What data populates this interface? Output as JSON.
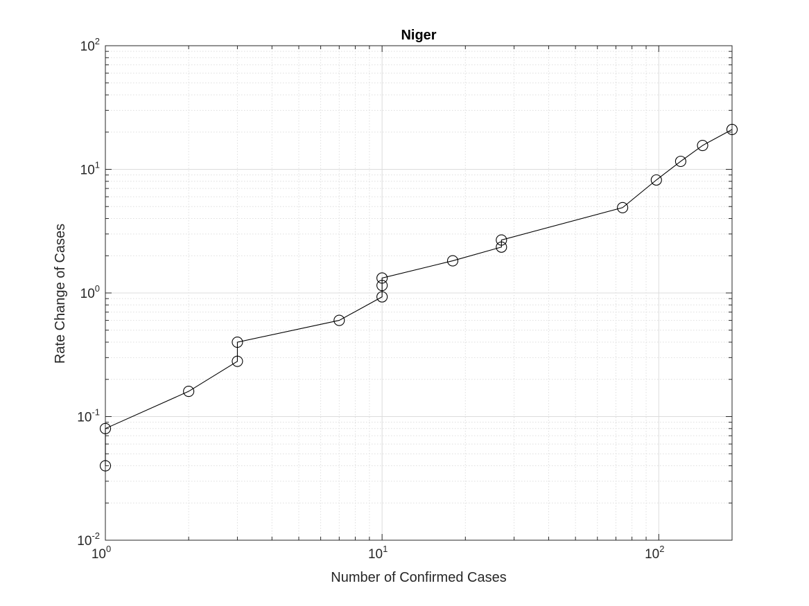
{
  "chart_data": {
    "type": "line",
    "title": "Niger",
    "xlabel": "Number of Confirmed Cases",
    "ylabel": "Rate Change of Cases",
    "xscale": "log",
    "yscale": "log",
    "xlim": [
      1,
      184
    ],
    "ylim": [
      0.01,
      100
    ],
    "xticks": [
      {
        "value": 1,
        "base": "10",
        "exp": "0"
      },
      {
        "value": 10,
        "base": "10",
        "exp": "1"
      },
      {
        "value": 100,
        "base": "10",
        "exp": "2"
      }
    ],
    "yticks": [
      {
        "value": 0.01,
        "base": "10",
        "exp": "-2"
      },
      {
        "value": 0.1,
        "base": "10",
        "exp": "-1"
      },
      {
        "value": 1,
        "base": "10",
        "exp": "0"
      },
      {
        "value": 10,
        "base": "10",
        "exp": "1"
      },
      {
        "value": 100,
        "base": "10",
        "exp": "2"
      }
    ],
    "grid": true,
    "minor_grid": true,
    "marker": "circle-open",
    "color": "#000000",
    "series": [
      {
        "x": [
          1,
          1,
          2,
          3,
          3,
          7,
          10,
          10,
          10,
          18,
          27,
          27,
          74,
          98,
          120,
          144,
          184
        ],
        "y": [
          0.04,
          0.08,
          0.16,
          0.28,
          0.4,
          0.6,
          0.93,
          1.15,
          1.32,
          1.82,
          2.35,
          2.68,
          4.9,
          8.2,
          11.6,
          15.6,
          21
        ]
      }
    ]
  }
}
